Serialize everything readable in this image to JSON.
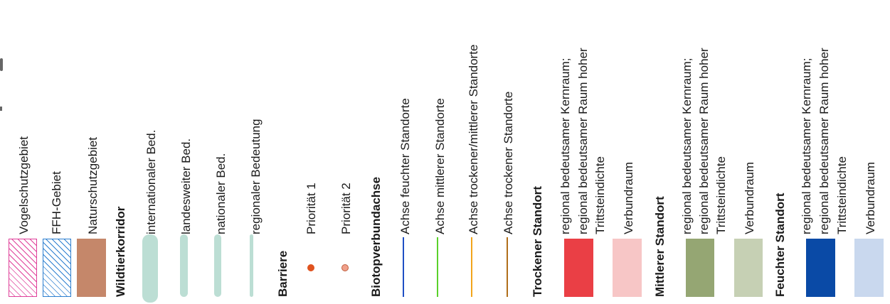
{
  "legend": {
    "vogelschutz": {
      "label": "Vogelschutzgebiet",
      "color": "#e0409a"
    },
    "ffh": {
      "label": "FFH-Gebiet",
      "color": "#2d7fd0"
    },
    "naturschutz": {
      "label": "Naturschutzgebiet",
      "color": "#c5876a"
    },
    "wildtier": {
      "heading": "Wildtierkorridor",
      "color": "#bcded4",
      "items": [
        {
          "label": "internationaler Bed."
        },
        {
          "label": "landesweiter Bed."
        },
        {
          "label": "nationaler Bed."
        },
        {
          "label": "regionaler Bedeutung"
        }
      ]
    },
    "barriere": {
      "heading": "Barriere",
      "items": [
        {
          "label": "Priorität 1",
          "color": "#e0531f"
        },
        {
          "label": "Priorität 2",
          "color": "#f0a08a"
        }
      ]
    },
    "biotop": {
      "heading": "Biotopverbundachse",
      "items": [
        {
          "label": "Achse feuchter Standorte",
          "color": "#1f4fc4"
        },
        {
          "label": "Achse mittlerer Standorte",
          "color": "#5ad12a"
        },
        {
          "label": "Achse trockener/mittlerer Standorte",
          "color": "#f2a51c"
        },
        {
          "label": "Achse trockener Standorte",
          "color": "#b06e1a"
        }
      ]
    },
    "trocken": {
      "heading": "Trockener Standort",
      "core": {
        "line1": "regional bedeutsamer Kernraum;",
        "line2": "regional bedeutsamer Raum hoher",
        "line3": "Trittsteindichte",
        "color": "#ea3f45"
      },
      "verbund": {
        "label": "Verbundraum",
        "color": "#f7c6c6"
      }
    },
    "mittel": {
      "heading": "Mittlerer Standort",
      "core": {
        "line1": "regional bedeutsamer Kernraum;",
        "line2": "regional bedeutsamer Raum hoher",
        "line3": "Trittsteindichte",
        "color": "#95a673"
      },
      "verbund": {
        "label": "Verbundraum",
        "color": "#c6d0b4"
      }
    },
    "feucht": {
      "heading": "Feuchter Standort",
      "core": {
        "line1": "regional bedeutsamer Kernraum;",
        "line2": "regional bedeutsamer Raum hoher",
        "line3": "Trittsteindichte",
        "color": "#0a4aa6"
      },
      "verbund": {
        "label": "Verbundraum",
        "color": "#c9d8ee"
      }
    }
  }
}
